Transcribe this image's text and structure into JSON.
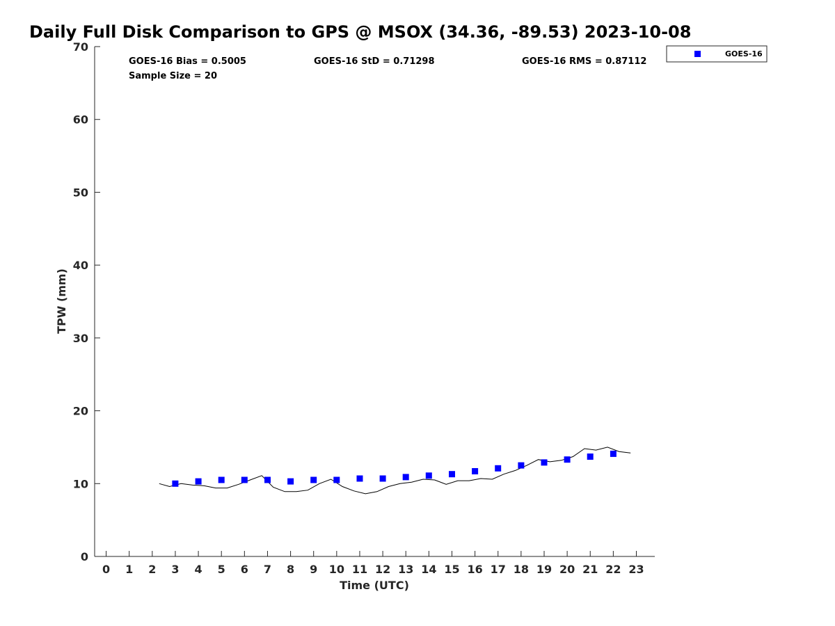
{
  "chart_data": {
    "type": "scatter",
    "title": "Daily Full Disk Comparison to GPS @ MSOX (34.36, -89.53) 2023-10-08",
    "xlabel": "Time (UTC)",
    "ylabel": "TPW (mm)",
    "xlim": [
      -0.5,
      23.8
    ],
    "ylim": [
      0,
      70
    ],
    "x_ticks": [
      "0",
      "1",
      "2",
      "3",
      "4",
      "5",
      "6",
      "7",
      "8",
      "9",
      "10",
      "11",
      "12",
      "13",
      "14",
      "15",
      "16",
      "17",
      "18",
      "19",
      "20",
      "21",
      "22",
      "23"
    ],
    "y_ticks": [
      "0",
      "10",
      "20",
      "30",
      "40",
      "50",
      "60",
      "70"
    ],
    "grid": false,
    "legend_position": "outside top-right",
    "stats": {
      "bias": "GOES-16 Bias = 0.5005",
      "std": "GOES-16 StD = 0.71298",
      "rms": "GOES-16 RMS = 0.87112",
      "sample": "Sample Size = 20"
    },
    "series": [
      {
        "name": "GOES-16",
        "kind": "scatter",
        "marker": "square",
        "color": "#0000ff",
        "x": [
          3,
          4,
          5,
          6,
          7,
          8,
          9,
          10,
          11,
          12,
          13,
          14,
          15,
          16,
          17,
          18,
          19,
          20,
          21,
          22
        ],
        "y": [
          10.0,
          10.3,
          10.5,
          10.5,
          10.5,
          10.3,
          10.5,
          10.5,
          10.7,
          10.7,
          10.9,
          11.1,
          11.3,
          11.7,
          12.1,
          12.5,
          12.9,
          13.3,
          13.7,
          14.1
        ]
      },
      {
        "kind": "line",
        "color": "#000000",
        "x": [
          2.3,
          2.75,
          3.25,
          3.75,
          4.25,
          4.75,
          5.25,
          5.75,
          6.25,
          6.75,
          7.25,
          7.75,
          8.25,
          8.75,
          9.25,
          9.75,
          10.25,
          10.75,
          11.25,
          11.75,
          12.25,
          12.75,
          13.25,
          13.75,
          14.25,
          14.75,
          15.25,
          15.75,
          16.25,
          16.75,
          17.25,
          17.75,
          18.25,
          18.75,
          19.25,
          19.75,
          20.25,
          20.75,
          21.25,
          21.75,
          22.25,
          22.75
        ],
        "y": [
          10.0,
          9.6,
          10.0,
          9.8,
          9.7,
          9.4,
          9.4,
          9.9,
          10.5,
          11.1,
          9.5,
          8.9,
          8.9,
          9.1,
          10.0,
          10.6,
          9.6,
          9.0,
          8.6,
          8.9,
          9.6,
          10.0,
          10.2,
          10.6,
          10.5,
          9.9,
          10.4,
          10.4,
          10.7,
          10.6,
          11.3,
          11.8,
          12.5,
          13.3,
          13.0,
          13.2,
          13.7,
          14.8,
          14.6,
          15.0,
          14.4,
          14.2
        ]
      }
    ]
  }
}
